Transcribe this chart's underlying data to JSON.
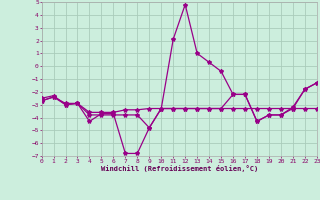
{
  "xlabel": "Windchill (Refroidissement éolien,°C)",
  "xlim": [
    0,
    23
  ],
  "ylim": [
    -7,
    5
  ],
  "xticks": [
    0,
    1,
    2,
    3,
    4,
    5,
    6,
    7,
    8,
    9,
    10,
    11,
    12,
    13,
    14,
    15,
    16,
    17,
    18,
    19,
    20,
    21,
    22,
    23
  ],
  "yticks": [
    -7,
    -6,
    -5,
    -4,
    -3,
    -2,
    -1,
    0,
    1,
    2,
    3,
    4,
    5
  ],
  "bg_color": "#cceedd",
  "grid_color": "#aaccbb",
  "line_color": "#990088",
  "line1_x": [
    0,
    1,
    2,
    3,
    4,
    5,
    6,
    7,
    8,
    9,
    10,
    11,
    12,
    13,
    14,
    15,
    16,
    17,
    18,
    19,
    20,
    21,
    22,
    23
  ],
  "line1_y": [
    -2.5,
    -2.3,
    -3.0,
    -2.9,
    -4.3,
    -3.7,
    -3.7,
    -6.8,
    -6.8,
    -4.8,
    -3.3,
    2.1,
    4.8,
    1.0,
    0.3,
    -0.4,
    -2.2,
    -2.2,
    -4.3,
    -3.8,
    -3.8,
    -3.2,
    -1.8,
    -1.3
  ],
  "line2_x": [
    0,
    1,
    2,
    3,
    4,
    5,
    6,
    7,
    8,
    9,
    10,
    11,
    12,
    13,
    14,
    15,
    16,
    17,
    18,
    19,
    20,
    21,
    22,
    23
  ],
  "line2_y": [
    -2.7,
    -2.4,
    -2.9,
    -2.9,
    -3.6,
    -3.6,
    -3.6,
    -3.4,
    -3.4,
    -3.3,
    -3.3,
    -3.3,
    -3.3,
    -3.3,
    -3.3,
    -3.3,
    -3.3,
    -3.3,
    -3.3,
    -3.3,
    -3.3,
    -3.3,
    -3.3,
    -3.3
  ],
  "line3_x": [
    0,
    1,
    2,
    3,
    4,
    5,
    6,
    7,
    8,
    9,
    10,
    11,
    12,
    13,
    14,
    15,
    16,
    17,
    18,
    19,
    20,
    21,
    22,
    23
  ],
  "line3_y": [
    -2.7,
    -2.4,
    -3.0,
    -2.9,
    -3.8,
    -3.8,
    -3.8,
    -3.8,
    -3.8,
    -4.8,
    -3.3,
    -3.3,
    -3.3,
    -3.3,
    -3.3,
    -3.3,
    -2.2,
    -2.2,
    -4.3,
    -3.8,
    -3.8,
    -3.3,
    -1.8,
    -1.3
  ]
}
